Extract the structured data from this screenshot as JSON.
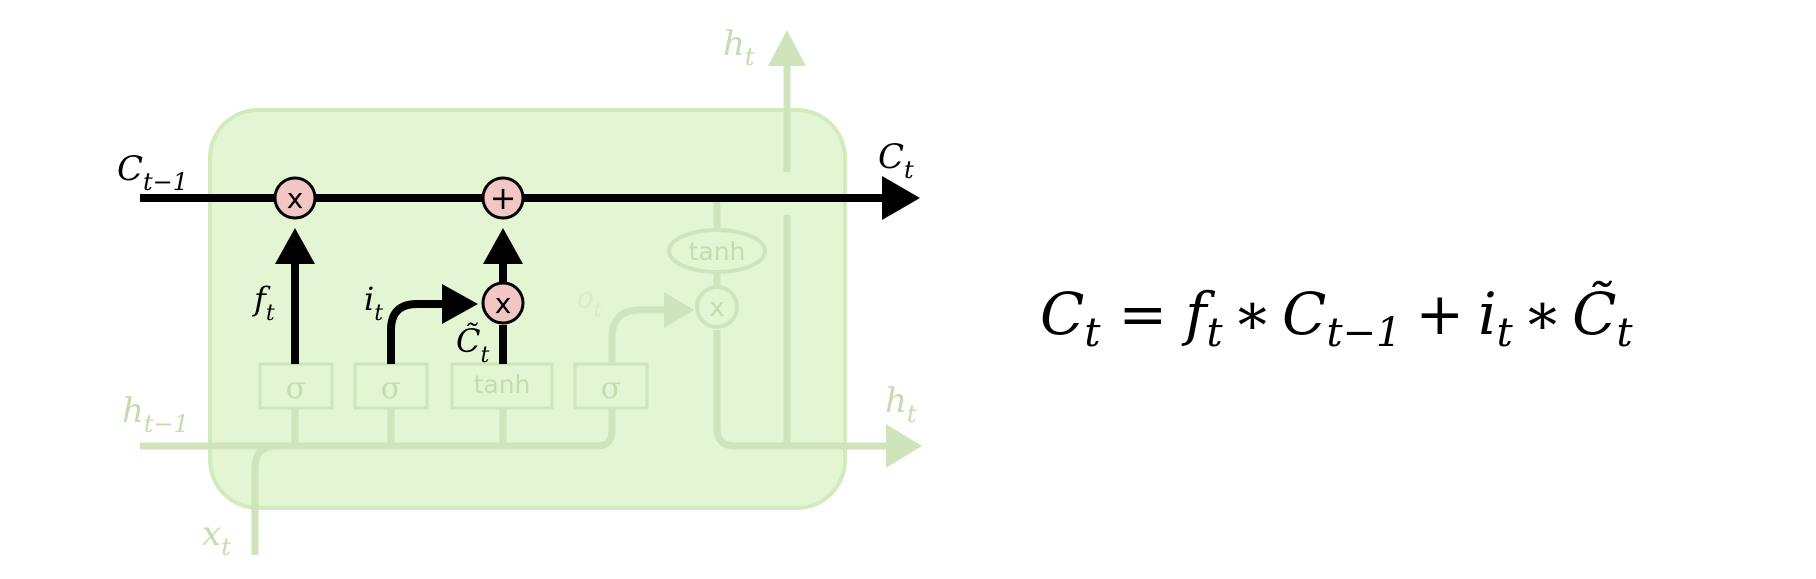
{
  "labels": {
    "c_prev": "C",
    "c_prev_sub": "t−1",
    "c_out": "C",
    "c_out_sub": "t",
    "h_prev": "h",
    "h_prev_sub": "t−1",
    "h_top": "h",
    "h_top_sub": "t",
    "h_right": "h",
    "h_right_sub": "t",
    "x_in": "x",
    "x_in_sub": "t",
    "f_gate": "f",
    "f_gate_sub": "t",
    "i_gate": "i",
    "i_gate_sub": "t",
    "o_gate": "o",
    "o_gate_sub": "t",
    "c_tilde": "C̃",
    "c_tilde_sub": "t"
  },
  "ops": {
    "multiply": "x",
    "add": "+"
  },
  "layers": {
    "sigma": "σ",
    "tanh": "tanh"
  },
  "equation": {
    "lhs": "C",
    "lhs_sub": "t",
    "eq": "=",
    "t1": "f",
    "t1_sub": "t",
    "star": "∗",
    "t2": "C",
    "t2_sub": "t−1",
    "plus": "+",
    "t3": "i",
    "t3_sub": "t",
    "t4": "C̃",
    "t4_sub": "t"
  },
  "colors": {
    "cell_bg": "#e3f5d3",
    "cell_border": "#d2ebbd",
    "faded": "#cfe3bc",
    "faded_text": "#c5dbb0",
    "active": "#000000",
    "op_fill": "#f3c6c6"
  }
}
